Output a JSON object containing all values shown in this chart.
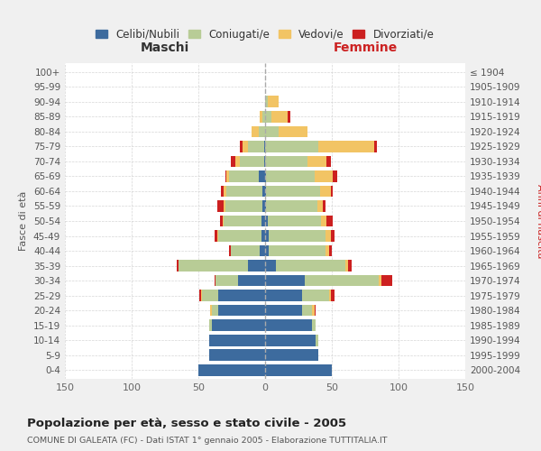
{
  "age_groups": [
    "0-4",
    "5-9",
    "10-14",
    "15-19",
    "20-24",
    "25-29",
    "30-34",
    "35-39",
    "40-44",
    "45-49",
    "50-54",
    "55-59",
    "60-64",
    "65-69",
    "70-74",
    "75-79",
    "80-84",
    "85-89",
    "90-94",
    "95-99",
    "100+"
  ],
  "birth_years": [
    "2000-2004",
    "1995-1999",
    "1990-1994",
    "1985-1989",
    "1980-1984",
    "1975-1979",
    "1970-1974",
    "1965-1969",
    "1960-1964",
    "1955-1959",
    "1950-1954",
    "1945-1949",
    "1940-1944",
    "1935-1939",
    "1930-1934",
    "1925-1929",
    "1920-1924",
    "1915-1919",
    "1910-1914",
    "1905-1909",
    "≤ 1904"
  ],
  "colors": {
    "celibi": "#3d6b9e",
    "coniugati": "#b8cc96",
    "vedovi": "#f2c464",
    "divorziati": "#cc2020"
  },
  "males_celibi": [
    50,
    42,
    42,
    40,
    35,
    35,
    20,
    13,
    4,
    3,
    3,
    2,
    2,
    5,
    1,
    1,
    0,
    0,
    0,
    0,
    0
  ],
  "males_coniugati": [
    0,
    0,
    0,
    2,
    5,
    12,
    17,
    52,
    22,
    32,
    28,
    28,
    27,
    22,
    18,
    12,
    5,
    2,
    0,
    0,
    0
  ],
  "males_vedovi": [
    0,
    0,
    0,
    0,
    1,
    1,
    0,
    0,
    0,
    1,
    1,
    1,
    2,
    2,
    3,
    4,
    5,
    2,
    0,
    0,
    0
  ],
  "males_divorziati": [
    0,
    0,
    0,
    0,
    0,
    1,
    1,
    1,
    1,
    2,
    2,
    5,
    2,
    1,
    4,
    2,
    0,
    0,
    0,
    0,
    0
  ],
  "females_celibi": [
    50,
    40,
    38,
    35,
    28,
    28,
    30,
    8,
    3,
    3,
    2,
    1,
    1,
    1,
    0,
    0,
    0,
    0,
    0,
    0,
    0
  ],
  "females_coniugati": [
    0,
    0,
    2,
    3,
    7,
    20,
    55,
    52,
    42,
    42,
    40,
    38,
    40,
    36,
    32,
    40,
    10,
    5,
    2,
    0,
    0
  ],
  "females_vedovi": [
    0,
    0,
    0,
    0,
    2,
    1,
    2,
    2,
    3,
    4,
    4,
    4,
    8,
    14,
    14,
    42,
    22,
    12,
    8,
    0,
    0
  ],
  "females_divorziati": [
    0,
    0,
    0,
    0,
    1,
    3,
    8,
    3,
    2,
    3,
    5,
    2,
    2,
    3,
    3,
    2,
    0,
    2,
    0,
    0,
    0
  ],
  "title": "Popolazione per età, sesso e stato civile - 2005",
  "subtitle": "COMUNE DI GALEATA (FC) - Dati ISTAT 1° gennaio 2005 - Elaborazione TUTTITALIA.IT",
  "xlabel_left": "Maschi",
  "xlabel_right": "Femmine",
  "ylabel_left": "Fasce di età",
  "ylabel_right": "Anni di nascita",
  "xlim": 150,
  "legend_labels": [
    "Celibi/Nubili",
    "Coniugati/e",
    "Vedovi/e",
    "Divorziati/e"
  ],
  "bg_color": "#f0f0f0",
  "plot_bg_color": "#ffffff"
}
